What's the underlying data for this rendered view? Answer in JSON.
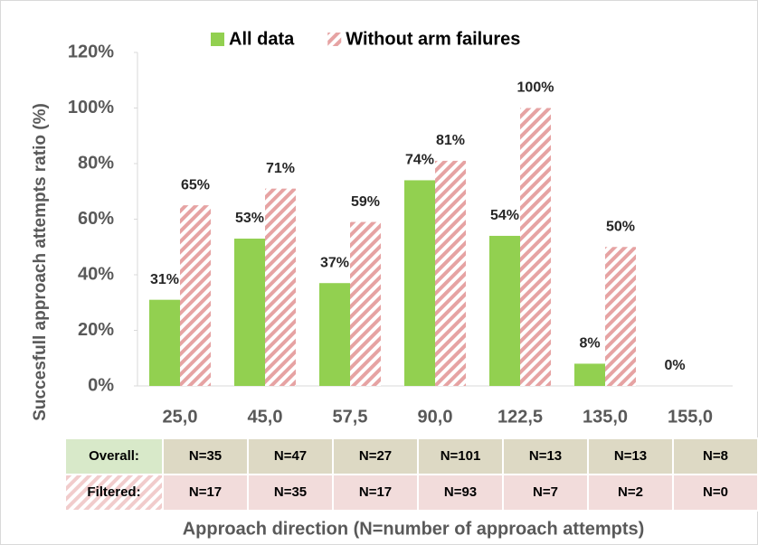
{
  "chart_data": {
    "type": "bar",
    "legend": "top",
    "ylabel": "Succesfull approach attempts ratio (%)",
    "xlabel": "Approach direction (N=number of approach attempts)",
    "categories": [
      "25,0",
      "45,0",
      "57,5",
      "90,0",
      "122,5",
      "135,0",
      "155,0"
    ],
    "series": [
      {
        "name": "All data",
        "color": "#92d050",
        "values": [
          31,
          53,
          37,
          74,
          54,
          8,
          0
        ],
        "value_labels": [
          "31%",
          "53%",
          "37%",
          "74%",
          "54%",
          "8%",
          "0%"
        ]
      },
      {
        "name": "Without arm failures",
        "color": "#e6a3a3",
        "hatch": true,
        "values": [
          65,
          71,
          59,
          81,
          100,
          50,
          null
        ],
        "value_labels": [
          "65%",
          "71%",
          "59%",
          "81%",
          "100%",
          "50%",
          null
        ]
      }
    ],
    "ylim": [
      0,
      120
    ],
    "yticks": [
      {
        "value": 0,
        "label": "0%"
      },
      {
        "value": 20,
        "label": "20%"
      },
      {
        "value": 40,
        "label": "40%"
      },
      {
        "value": 60,
        "label": "60%"
      },
      {
        "value": 80,
        "label": "80%"
      },
      {
        "value": 100,
        "label": "100%"
      },
      {
        "value": 120,
        "label": "120%"
      }
    ],
    "table": {
      "rows": [
        {
          "label": "Overall:",
          "cells": [
            "N=35",
            "N=47",
            "N=27",
            "N=101",
            "N=13",
            "N=13",
            "N=8"
          ]
        },
        {
          "label": "Filtered:",
          "cells": [
            "N=17",
            "N=35",
            "N=17",
            "N=93",
            "N=7",
            "N=2",
            "N=0"
          ]
        }
      ]
    }
  }
}
